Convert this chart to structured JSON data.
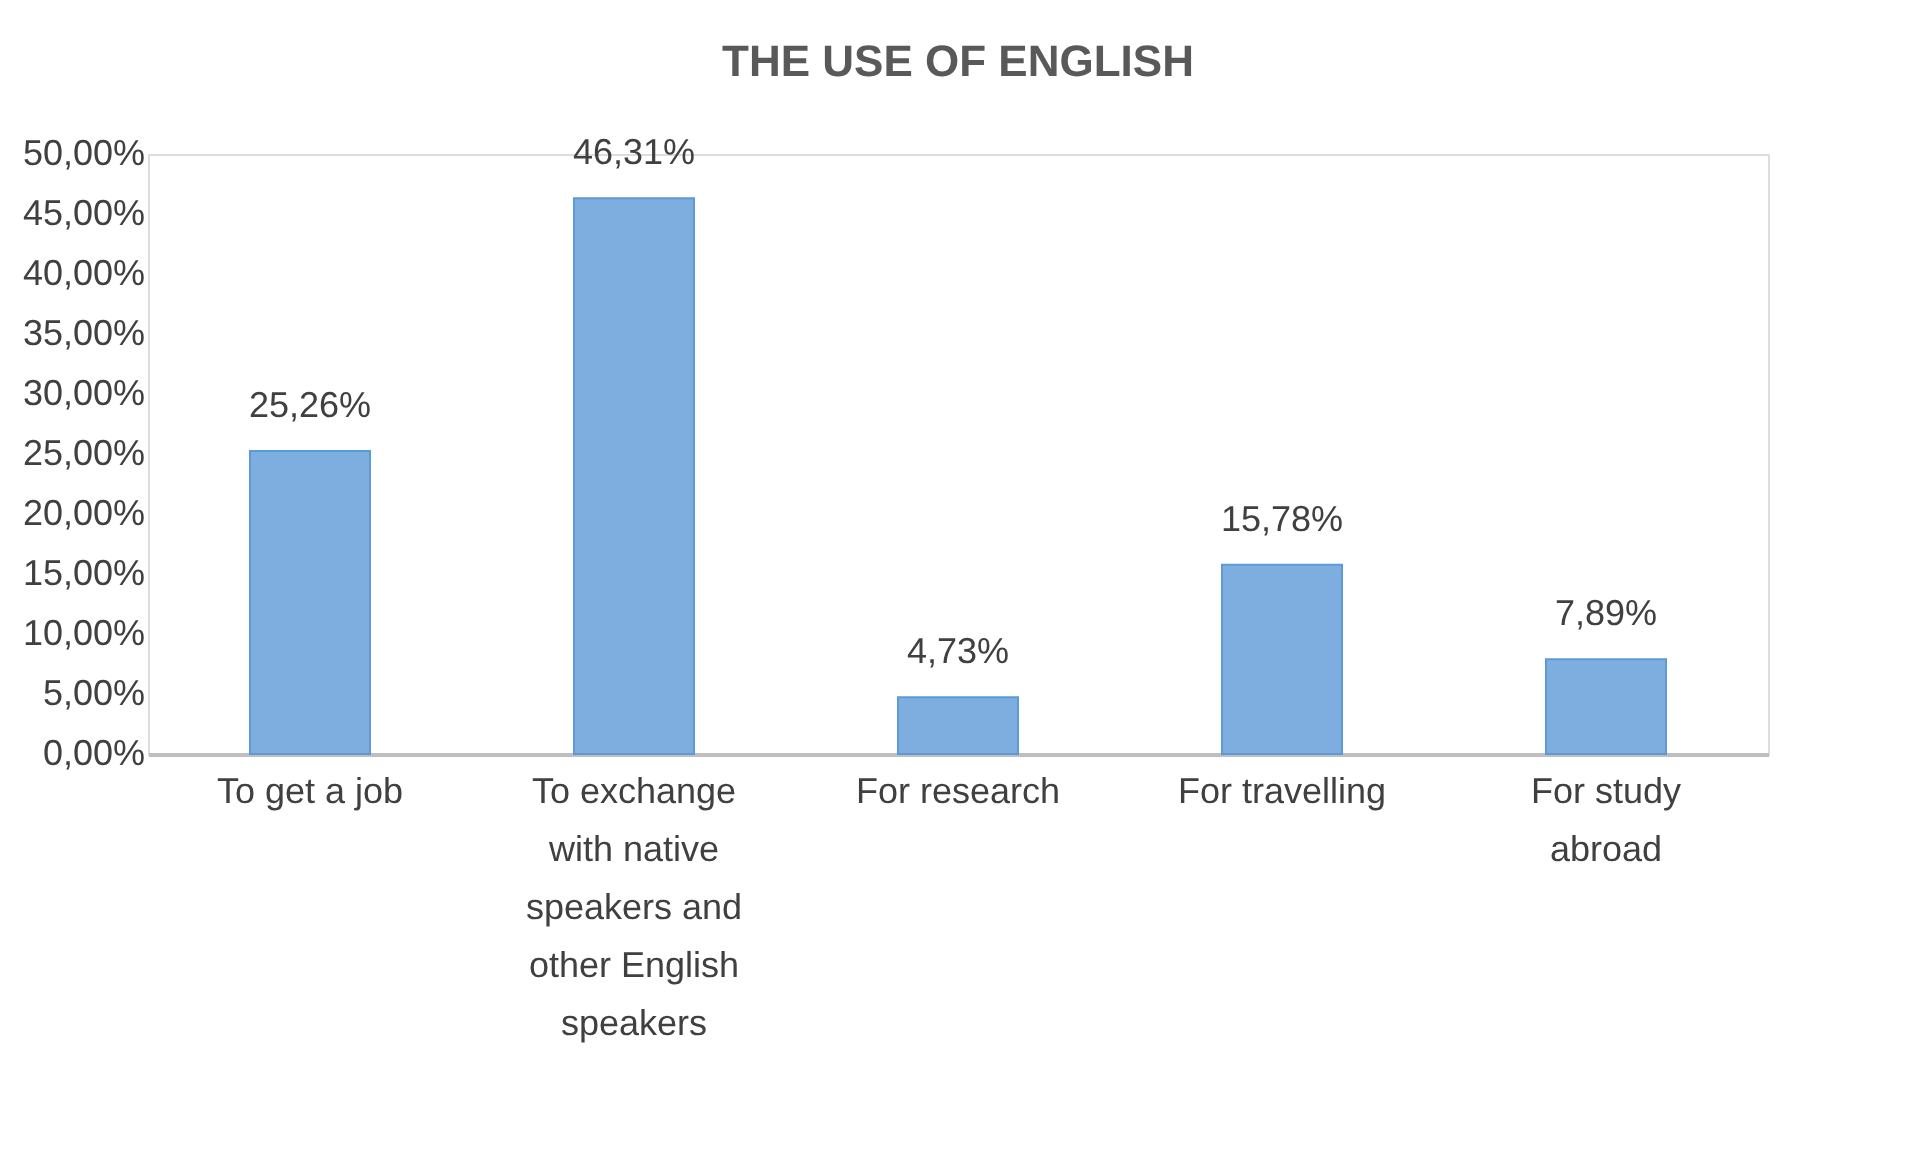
{
  "chart_data": {
    "type": "bar",
    "title": "THE USE OF ENGLISH",
    "categories": [
      "To get a job",
      "To exchange with native speakers and other English speakers",
      "For research",
      "For travelling",
      "For study abroad"
    ],
    "values": [
      25.26,
      46.31,
      4.73,
      15.78,
      7.89
    ],
    "value_labels": [
      "25,26%",
      "46,31%",
      "4,73%",
      "15,78%",
      "7,89%"
    ],
    "color": "#7eaee0",
    "ylim": [
      0,
      50
    ],
    "yticks": [
      {
        "value": 0,
        "label": "0,00%"
      },
      {
        "value": 5,
        "label": "5,00%"
      },
      {
        "value": 10,
        "label": "10,00%"
      },
      {
        "value": 15,
        "label": "15,00%"
      },
      {
        "value": 20,
        "label": "20,00%"
      },
      {
        "value": 25,
        "label": "25,00%"
      },
      {
        "value": 30,
        "label": "30,00%"
      },
      {
        "value": 35,
        "label": "35,00%"
      },
      {
        "value": 40,
        "label": "40,00%"
      },
      {
        "value": 45,
        "label": "45,00%"
      },
      {
        "value": 50,
        "label": "50,00%"
      }
    ],
    "grid": false
  }
}
